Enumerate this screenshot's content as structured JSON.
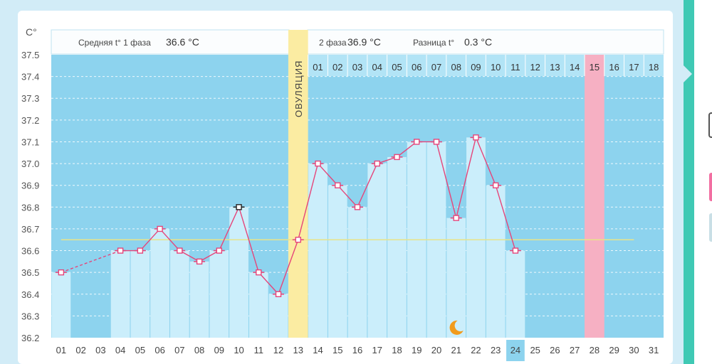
{
  "y_axis_unit": "C°",
  "header": {
    "phase1_label": "Средняя t° 1 фаза",
    "phase1_value": "36.6 °C",
    "phase2_label": "2 фаза",
    "phase2_value": "36.9 °C",
    "diff_label": "Разница t°",
    "diff_value": "0.3 °C"
  },
  "ovulation_label": "ОВУЛЯЦИЯ",
  "colors": {
    "plot_bg": "#8dd3ee",
    "bar": "#cbeefb",
    "line": "#e6457a",
    "coverline": "#e8e48a",
    "ovulation": "#fbeca2",
    "period": "#f6b0c3",
    "today": "#8dd3ee"
  },
  "chart_data": {
    "type": "line",
    "title": "",
    "xlabel": "",
    "ylabel": "C°",
    "ylim": [
      36.2,
      37.5
    ],
    "y_ticks": [
      "36.2",
      "36.3",
      "36.4",
      "36.5",
      "36.6",
      "36.7",
      "36.8",
      "36.9",
      "37.0",
      "37.1",
      "37.2",
      "37.3",
      "37.4",
      "37.5"
    ],
    "grid": true,
    "categories": [
      "01",
      "02",
      "03",
      "04",
      "05",
      "06",
      "07",
      "08",
      "09",
      "10",
      "11",
      "12",
      "13",
      "14",
      "15",
      "16",
      "17",
      "18",
      "19",
      "20",
      "21",
      "22",
      "23",
      "24",
      "25",
      "26",
      "27",
      "28",
      "29",
      "30",
      "31"
    ],
    "phase2_days": [
      "01",
      "02",
      "03",
      "04",
      "05",
      "06",
      "07",
      "08",
      "09",
      "10",
      "11",
      "12",
      "13",
      "14",
      "15",
      "16",
      "17",
      "18"
    ],
    "series": [
      {
        "values": [
          36.5,
          null,
          null,
          36.6,
          36.6,
          36.7,
          36.6,
          36.55,
          36.6,
          36.8,
          36.5,
          36.4,
          36.65,
          37.0,
          36.9,
          36.8,
          37.0,
          37.03,
          37.1,
          37.1,
          36.75,
          37.12,
          36.9,
          36.6,
          null,
          null,
          null,
          null,
          null,
          null,
          null
        ]
      }
    ],
    "coverline": 36.65,
    "ovulation_day": "13",
    "period_day": "28",
    "today": "24",
    "moon_day": "21"
  }
}
